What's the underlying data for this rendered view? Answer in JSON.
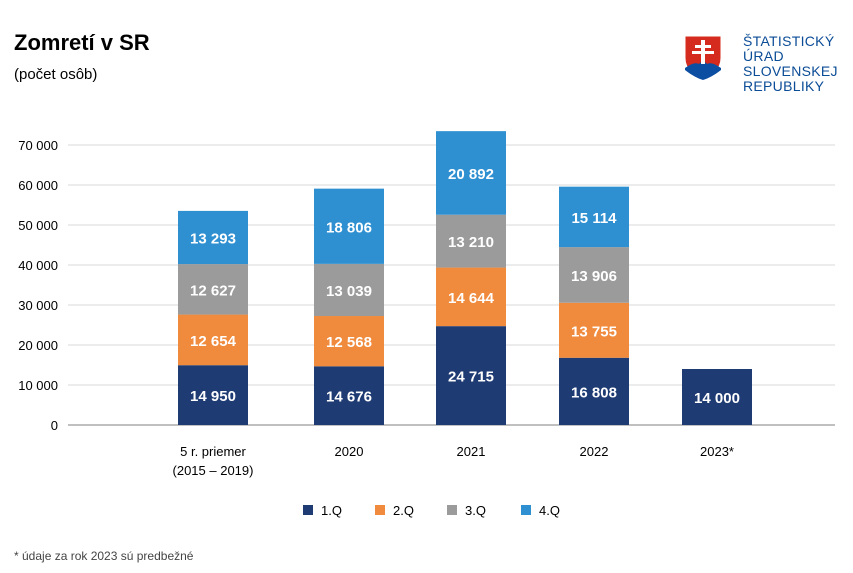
{
  "header": {
    "title": "Zomretí v SR",
    "subtitle": "(počet osôb)"
  },
  "logo": {
    "lines": [
      "ŠTATISTICKÝ",
      "ÚRAD",
      "SLOVENSKEJ",
      "REPUBLIKY"
    ],
    "color": "#0b4c96"
  },
  "footnote": "* údaje za rok 2023 sú predbežné",
  "chart_data": {
    "type": "bar",
    "stacked": true,
    "categories": [
      [
        "5 r. priemer",
        "(2015 – 2019)"
      ],
      [
        "2020"
      ],
      [
        "2021"
      ],
      [
        "2022"
      ],
      [
        "2023*"
      ]
    ],
    "series": [
      {
        "name": "1.Q",
        "color": "#1f3b73",
        "values": [
          14950,
          14676,
          24715,
          16808,
          14000
        ],
        "labels": [
          "14 950",
          "14 676",
          "24 715",
          "16 808",
          "14 000"
        ]
      },
      {
        "name": "2.Q",
        "color": "#f08a3c",
        "values": [
          12654,
          12568,
          14644,
          13755,
          null
        ],
        "labels": [
          "12 654",
          "12 568",
          "14 644",
          "13 755",
          ""
        ]
      },
      {
        "name": "3.Q",
        "color": "#9b9b9b",
        "values": [
          12627,
          13039,
          13210,
          13906,
          null
        ],
        "labels": [
          "12 627",
          "13 039",
          "13 210",
          "13 906",
          ""
        ]
      },
      {
        "name": "4.Q",
        "color": "#2e8fd1",
        "values": [
          13293,
          18806,
          20892,
          15114,
          null
        ],
        "labels": [
          "13 293",
          "18 806",
          "20 892",
          "15 114",
          ""
        ]
      }
    ],
    "ylim": [
      0,
      70000
    ],
    "yticks": [
      0,
      10000,
      20000,
      30000,
      40000,
      50000,
      60000,
      70000
    ],
    "ytick_labels": [
      "0",
      "10 000",
      "20 000",
      "30 000",
      "40 000",
      "50 000",
      "60 000",
      "70 000"
    ],
    "grid": true,
    "legend_position": "bottom"
  }
}
